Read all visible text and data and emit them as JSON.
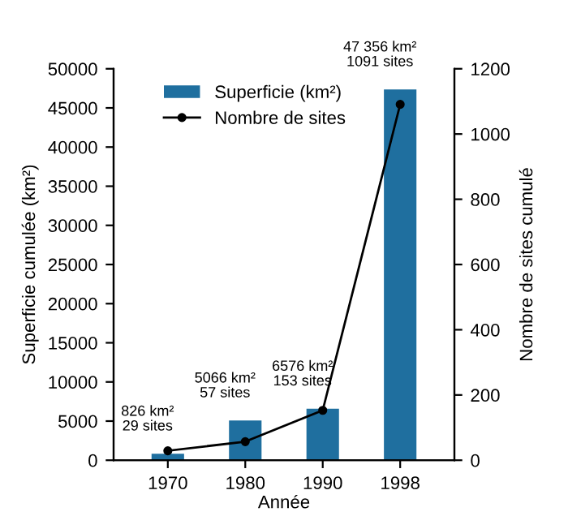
{
  "chart_data": {
    "type": "bar",
    "categories": [
      "1970",
      "1980",
      "1990",
      "1998"
    ],
    "xlabel": "Année",
    "ylabel": "Superficie cumulée (km²)",
    "y2label": "Nombre de sites cumulé",
    "series": [
      {
        "name": "Superficie (km²)",
        "color": "#1f6f9f",
        "values": [
          826,
          5066,
          6576,
          47356
        ]
      },
      {
        "name": "Nombre de sites",
        "type": "line",
        "axis": "y2",
        "color": "#000000",
        "marker": "circle",
        "values": [
          29,
          57,
          153,
          1091
        ]
      }
    ],
    "ylim": [
      0,
      50000
    ],
    "yticks": [
      0,
      5000,
      10000,
      15000,
      20000,
      25000,
      30000,
      35000,
      40000,
      45000,
      50000
    ],
    "y2lim": [
      0,
      1200
    ],
    "y2ticks": [
      0,
      200,
      400,
      600,
      800,
      1000,
      1200
    ],
    "annotations": [
      {
        "text": "826 km²\n29 sites",
        "x": "1970",
        "y": 826
      },
      {
        "text": "5066 km²\n57 sites",
        "x": "1980",
        "y": 5066
      },
      {
        "text": "6576 km²\n153 sites",
        "x": "1990",
        "y": 6576
      },
      {
        "text": "47 356 km²\n1091 sites",
        "x": "1998",
        "y": 47356
      }
    ],
    "legend": "top left",
    "grid": false
  }
}
